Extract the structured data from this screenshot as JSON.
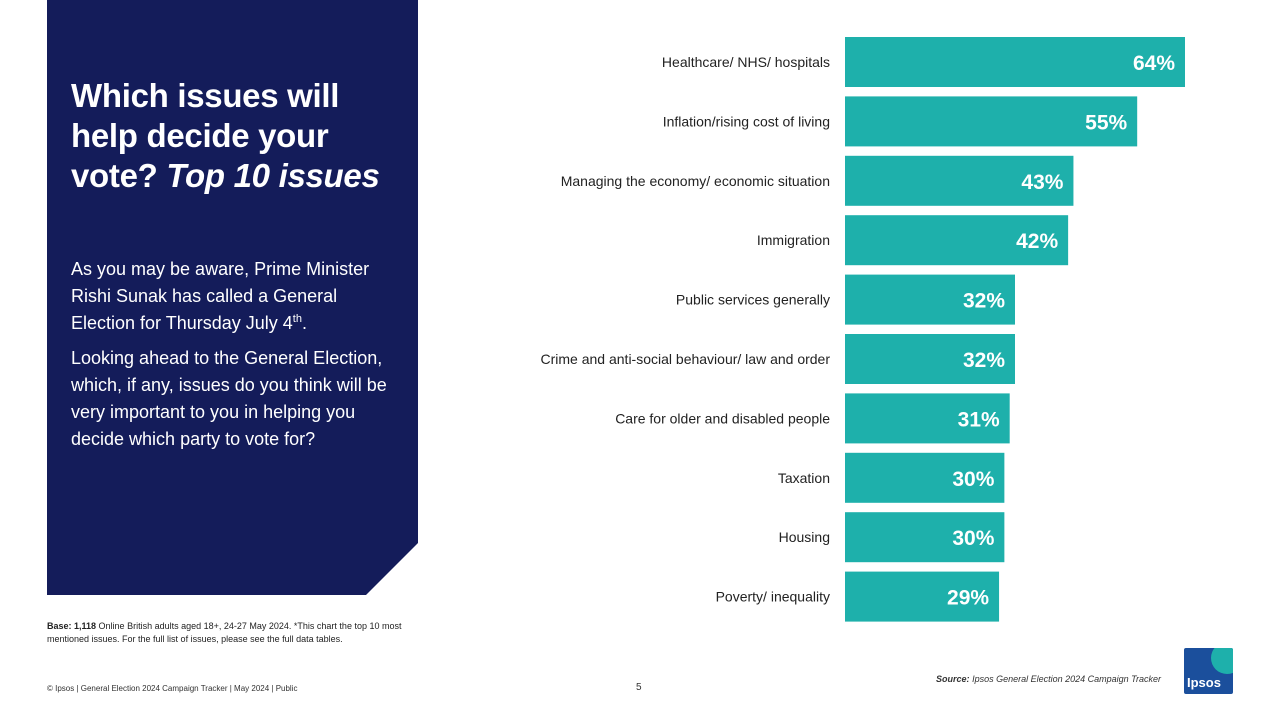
{
  "panel": {
    "title_main": "Which issues will help decide your vote?",
    "title_emph": "Top 10 issues",
    "paragraph1": "As you may be aware, Prime Minister Rishi Sunak has called a General Election for Thursday July 4",
    "paragraph1_sup": "th",
    "paragraph1_end": ".",
    "paragraph2": "Looking ahead to the General Election, which, if any, issues do you think will be very important to you in helping you decide which party to vote for?"
  },
  "base_note": {
    "label": "Base: 1,118",
    "text": " Online British adults aged 18+, 24-27 May 2024. *This chart the top 10 most mentioned issues. For the full list of issues, please see the full data tables."
  },
  "footer": {
    "text": "© Ipsos | General Election 2024 Campaign Tracker | May 2024 | Public",
    "page": "5"
  },
  "source": {
    "label": "Source:",
    "text": " Ipsos General Election 2024 Campaign Tracker"
  },
  "logo": {
    "text": "Ipsos"
  },
  "colors": {
    "panel": "#141c5a",
    "bar": "#1eb0ab",
    "logo": "#1b4f9c"
  },
  "chart_data": {
    "type": "bar",
    "orientation": "horizontal",
    "categories": [
      "Healthcare/ NHS/ hospitals",
      "Inflation/rising cost of living",
      "Managing the economy/ economic situation",
      "Immigration",
      "Public services generally",
      "Crime and anti-social behaviour/ law and order",
      "Care for older and disabled people",
      "Taxation",
      "Housing",
      "Poverty/ inequality"
    ],
    "values": [
      64,
      55,
      43,
      42,
      32,
      32,
      31,
      30,
      30,
      29
    ],
    "labels": [
      "64%",
      "55%",
      "43%",
      "42%",
      "32%",
      "32%",
      "31%",
      "30%",
      "30%",
      "29%"
    ],
    "xlim": [
      0,
      100
    ],
    "title": "",
    "xlabel": "",
    "ylabel": "",
    "grid": false,
    "legend": false
  }
}
